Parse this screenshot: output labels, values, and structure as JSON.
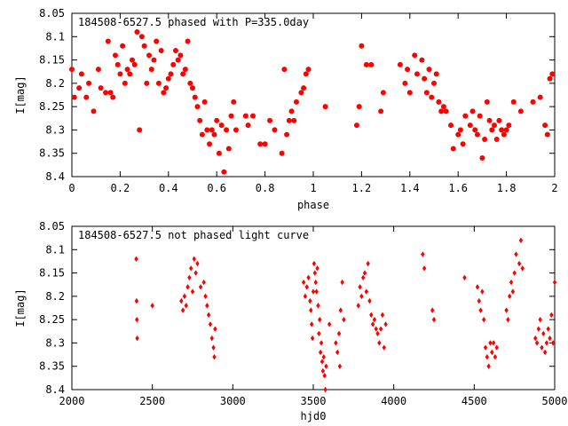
{
  "chart_data": [
    {
      "type": "scatter",
      "title": "184508-6527.5 phased with P=335.0day",
      "xlabel": "phase",
      "ylabel": "I[mag]",
      "xlim": [
        0,
        2
      ],
      "ylim": [
        8.05,
        8.4
      ],
      "y_inverted": true,
      "grid": false,
      "marker": "filled-circle",
      "series_color": "#ff0000",
      "x_ticks": [
        0,
        0.2,
        0.4,
        0.6,
        0.8,
        1,
        1.2,
        1.4,
        1.6,
        1.8,
        2
      ],
      "x_tick_labels": [
        "0",
        "0.2",
        "0.4",
        "0.6",
        "0.8",
        "1",
        "1.2",
        "1.4",
        "1.6",
        "1.8",
        "2"
      ],
      "y_ticks": [
        8.05,
        8.1,
        8.15,
        8.2,
        8.25,
        8.3,
        8.35,
        8.4
      ],
      "y_tick_labels": [
        "8.05",
        "8.1",
        "8.15",
        "8.2",
        "8.25",
        "8.3",
        "8.35",
        "8.4"
      ],
      "points": [
        [
          0.0,
          8.17
        ],
        [
          0.01,
          8.23
        ],
        [
          0.03,
          8.21
        ],
        [
          0.04,
          8.18
        ],
        [
          0.06,
          8.23
        ],
        [
          0.07,
          8.2
        ],
        [
          0.09,
          8.26
        ],
        [
          0.11,
          8.17
        ],
        [
          0.12,
          8.21
        ],
        [
          0.14,
          8.22
        ],
        [
          0.15,
          8.11
        ],
        [
          0.16,
          8.22
        ],
        [
          0.17,
          8.23
        ],
        [
          0.18,
          8.14
        ],
        [
          0.19,
          8.16
        ],
        [
          0.2,
          8.18
        ],
        [
          0.21,
          8.12
        ],
        [
          0.22,
          8.2
        ],
        [
          0.23,
          8.17
        ],
        [
          0.24,
          8.18
        ],
        [
          0.25,
          8.15
        ],
        [
          0.26,
          8.16
        ],
        [
          0.27,
          8.09
        ],
        [
          0.28,
          8.3
        ],
        [
          0.29,
          8.1
        ],
        [
          0.3,
          8.12
        ],
        [
          0.31,
          8.2
        ],
        [
          0.32,
          8.14
        ],
        [
          0.33,
          8.17
        ],
        [
          0.34,
          8.15
        ],
        [
          0.35,
          8.11
        ],
        [
          0.36,
          8.2
        ],
        [
          0.37,
          8.13
        ],
        [
          0.38,
          8.22
        ],
        [
          0.39,
          8.21
        ],
        [
          0.4,
          8.19
        ],
        [
          0.41,
          8.18
        ],
        [
          0.42,
          8.16
        ],
        [
          0.43,
          8.13
        ],
        [
          0.44,
          8.15
        ],
        [
          0.45,
          8.14
        ],
        [
          0.46,
          8.18
        ],
        [
          0.47,
          8.17
        ],
        [
          0.48,
          8.11
        ],
        [
          0.49,
          8.2
        ],
        [
          0.5,
          8.21
        ],
        [
          0.51,
          8.23
        ],
        [
          0.52,
          8.25
        ],
        [
          0.53,
          8.28
        ],
        [
          0.54,
          8.31
        ],
        [
          0.55,
          8.24
        ],
        [
          0.56,
          8.3
        ],
        [
          0.57,
          8.33
        ],
        [
          0.58,
          8.3
        ],
        [
          0.59,
          8.31
        ],
        [
          0.6,
          8.28
        ],
        [
          0.61,
          8.35
        ],
        [
          0.62,
          8.29
        ],
        [
          0.63,
          8.39
        ],
        [
          0.64,
          8.3
        ],
        [
          0.65,
          8.34
        ],
        [
          0.66,
          8.27
        ],
        [
          0.67,
          8.24
        ],
        [
          0.68,
          8.3
        ],
        [
          0.72,
          8.27
        ],
        [
          0.73,
          8.29
        ],
        [
          0.75,
          8.27
        ],
        [
          0.78,
          8.33
        ],
        [
          0.8,
          8.33
        ],
        [
          0.82,
          8.28
        ],
        [
          0.84,
          8.3
        ],
        [
          0.87,
          8.35
        ],
        [
          0.88,
          8.17
        ],
        [
          0.89,
          8.31
        ],
        [
          0.9,
          8.28
        ],
        [
          0.91,
          8.26
        ],
        [
          0.92,
          8.28
        ],
        [
          0.93,
          8.24
        ],
        [
          0.95,
          8.22
        ],
        [
          0.96,
          8.21
        ],
        [
          0.97,
          8.18
        ],
        [
          0.98,
          8.17
        ],
        [
          1.05,
          8.25
        ],
        [
          1.18,
          8.29
        ],
        [
          1.19,
          8.25
        ],
        [
          1.2,
          8.12
        ],
        [
          1.22,
          8.16
        ],
        [
          1.24,
          8.16
        ],
        [
          1.28,
          8.26
        ],
        [
          1.29,
          8.22
        ],
        [
          1.36,
          8.16
        ],
        [
          1.38,
          8.2
        ],
        [
          1.39,
          8.17
        ],
        [
          1.4,
          8.22
        ],
        [
          1.42,
          8.14
        ],
        [
          1.43,
          8.18
        ],
        [
          1.45,
          8.15
        ],
        [
          1.46,
          8.19
        ],
        [
          1.47,
          8.22
        ],
        [
          1.48,
          8.17
        ],
        [
          1.49,
          8.23
        ],
        [
          1.5,
          8.2
        ],
        [
          1.51,
          8.18
        ],
        [
          1.52,
          8.24
        ],
        [
          1.53,
          8.26
        ],
        [
          1.54,
          8.25
        ],
        [
          1.55,
          8.26
        ],
        [
          1.57,
          8.29
        ],
        [
          1.58,
          8.34
        ],
        [
          1.6,
          8.31
        ],
        [
          1.61,
          8.3
        ],
        [
          1.62,
          8.33
        ],
        [
          1.63,
          8.27
        ],
        [
          1.65,
          8.29
        ],
        [
          1.66,
          8.26
        ],
        [
          1.67,
          8.3
        ],
        [
          1.68,
          8.31
        ],
        [
          1.69,
          8.27
        ],
        [
          1.7,
          8.36
        ],
        [
          1.71,
          8.32
        ],
        [
          1.72,
          8.24
        ],
        [
          1.73,
          8.28
        ],
        [
          1.74,
          8.3
        ],
        [
          1.75,
          8.29
        ],
        [
          1.76,
          8.32
        ],
        [
          1.77,
          8.28
        ],
        [
          1.78,
          8.3
        ],
        [
          1.79,
          8.31
        ],
        [
          1.8,
          8.3
        ],
        [
          1.81,
          8.29
        ],
        [
          1.83,
          8.24
        ],
        [
          1.86,
          8.26
        ],
        [
          1.91,
          8.24
        ],
        [
          1.94,
          8.23
        ],
        [
          1.96,
          8.29
        ],
        [
          1.97,
          8.31
        ],
        [
          1.98,
          8.19
        ],
        [
          1.99,
          8.18
        ]
      ]
    },
    {
      "type": "scatter",
      "title": "184508-6527.5 not phased light curve",
      "xlabel": "hjd0",
      "ylabel": "I[mag]",
      "xlim": [
        2000,
        5000
      ],
      "ylim": [
        8.05,
        8.4
      ],
      "y_inverted": true,
      "grid": false,
      "marker": "diamond",
      "series_color": "#ff0000",
      "x_ticks": [
        2000,
        2500,
        3000,
        3500,
        4000,
        4500,
        5000
      ],
      "x_tick_labels": [
        "2000",
        "2500",
        "3000",
        "3500",
        "4000",
        "4500",
        "5000"
      ],
      "y_ticks": [
        8.05,
        8.1,
        8.15,
        8.2,
        8.25,
        8.3,
        8.35,
        8.4
      ],
      "y_tick_labels": [
        "8.05",
        "8.1",
        "8.15",
        "8.2",
        "8.25",
        "8.3",
        "8.35",
        "8.4"
      ],
      "points": [
        [
          2400,
          8.12
        ],
        [
          2402,
          8.21
        ],
        [
          2404,
          8.25
        ],
        [
          2406,
          8.29
        ],
        [
          2500,
          8.22
        ],
        [
          2680,
          8.21
        ],
        [
          2690,
          8.23
        ],
        [
          2700,
          8.2
        ],
        [
          2710,
          8.22
        ],
        [
          2720,
          8.18
        ],
        [
          2730,
          8.16
        ],
        [
          2740,
          8.14
        ],
        [
          2750,
          8.19
        ],
        [
          2760,
          8.12
        ],
        [
          2770,
          8.15
        ],
        [
          2780,
          8.13
        ],
        [
          2800,
          8.18
        ],
        [
          2820,
          8.17
        ],
        [
          2830,
          8.2
        ],
        [
          2840,
          8.22
        ],
        [
          2850,
          8.24
        ],
        [
          2860,
          8.26
        ],
        [
          2870,
          8.29
        ],
        [
          2880,
          8.31
        ],
        [
          2885,
          8.33
        ],
        [
          2890,
          8.27
        ],
        [
          3440,
          8.17
        ],
        [
          3450,
          8.2
        ],
        [
          3460,
          8.18
        ],
        [
          3470,
          8.16
        ],
        [
          3480,
          8.21
        ],
        [
          3485,
          8.23
        ],
        [
          3490,
          8.26
        ],
        [
          3495,
          8.29
        ],
        [
          3500,
          8.19
        ],
        [
          3505,
          8.13
        ],
        [
          3510,
          8.15
        ],
        [
          3515,
          8.17
        ],
        [
          3520,
          8.19
        ],
        [
          3525,
          8.14
        ],
        [
          3530,
          8.22
        ],
        [
          3535,
          8.28
        ],
        [
          3540,
          8.25
        ],
        [
          3545,
          8.32
        ],
        [
          3550,
          8.3
        ],
        [
          3555,
          8.34
        ],
        [
          3560,
          8.36
        ],
        [
          3565,
          8.33
        ],
        [
          3570,
          8.37
        ],
        [
          3575,
          8.4
        ],
        [
          3580,
          8.35
        ],
        [
          3600,
          8.26
        ],
        [
          3640,
          8.3
        ],
        [
          3650,
          8.32
        ],
        [
          3660,
          8.28
        ],
        [
          3665,
          8.35
        ],
        [
          3670,
          8.23
        ],
        [
          3680,
          8.17
        ],
        [
          3690,
          8.25
        ],
        [
          3780,
          8.22
        ],
        [
          3790,
          8.18
        ],
        [
          3800,
          8.2
        ],
        [
          3810,
          8.16
        ],
        [
          3820,
          8.15
        ],
        [
          3830,
          8.19
        ],
        [
          3840,
          8.13
        ],
        [
          3850,
          8.21
        ],
        [
          3860,
          8.24
        ],
        [
          3870,
          8.26
        ],
        [
          3880,
          8.25
        ],
        [
          3890,
          8.27
        ],
        [
          3900,
          8.28
        ],
        [
          3910,
          8.3
        ],
        [
          3920,
          8.27
        ],
        [
          3930,
          8.24
        ],
        [
          3940,
          8.31
        ],
        [
          3950,
          8.26
        ],
        [
          4180,
          8.11
        ],
        [
          4190,
          8.14
        ],
        [
          4240,
          8.23
        ],
        [
          4250,
          8.25
        ],
        [
          4440,
          8.16
        ],
        [
          4520,
          8.18
        ],
        [
          4530,
          8.21
        ],
        [
          4540,
          8.23
        ],
        [
          4550,
          8.19
        ],
        [
          4560,
          8.25
        ],
        [
          4570,
          8.31
        ],
        [
          4580,
          8.33
        ],
        [
          4590,
          8.35
        ],
        [
          4600,
          8.3
        ],
        [
          4610,
          8.32
        ],
        [
          4620,
          8.3
        ],
        [
          4630,
          8.33
        ],
        [
          4640,
          8.31
        ],
        [
          4700,
          8.23
        ],
        [
          4710,
          8.25
        ],
        [
          4720,
          8.2
        ],
        [
          4730,
          8.17
        ],
        [
          4740,
          8.19
        ],
        [
          4750,
          8.15
        ],
        [
          4760,
          8.11
        ],
        [
          4780,
          8.13
        ],
        [
          4790,
          8.08
        ],
        [
          4800,
          8.14
        ],
        [
          4880,
          8.29
        ],
        [
          4890,
          8.3
        ],
        [
          4900,
          8.27
        ],
        [
          4910,
          8.25
        ],
        [
          4920,
          8.31
        ],
        [
          4930,
          8.28
        ],
        [
          4940,
          8.32
        ],
        [
          4950,
          8.3
        ],
        [
          4960,
          8.27
        ],
        [
          4970,
          8.29
        ],
        [
          4980,
          8.24
        ],
        [
          4990,
          8.3
        ],
        [
          5000,
          8.17
        ]
      ]
    }
  ]
}
